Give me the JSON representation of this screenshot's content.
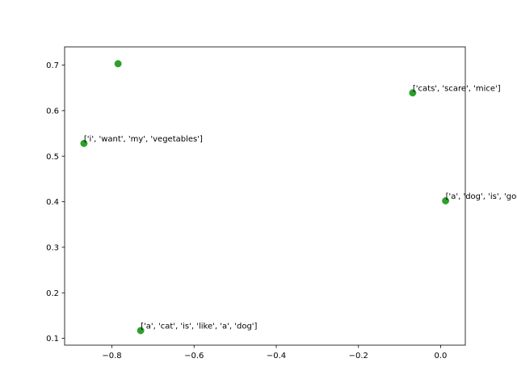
{
  "chart_data": {
    "type": "scatter",
    "title": "",
    "xlabel": "",
    "ylabel": "",
    "xlim": [
      -0.915,
      0.06
    ],
    "ylim": [
      0.085,
      0.74
    ],
    "xticks": [
      -0.8,
      -0.6,
      -0.4,
      -0.2,
      0.0
    ],
    "xtick_labels": [
      "−0.8",
      "−0.6",
      "−0.4",
      "−0.2",
      "0.0"
    ],
    "yticks": [
      0.1,
      0.2,
      0.3,
      0.4,
      0.5,
      0.6,
      0.7
    ],
    "ytick_labels": [
      "0.1",
      "0.2",
      "0.3",
      "0.4",
      "0.5",
      "0.6",
      "0.7"
    ],
    "grid": false,
    "legend": "none",
    "point_color": "#2ca02c",
    "points": [
      {
        "x": -0.785,
        "y": 0.703,
        "label": ""
      },
      {
        "x": -0.068,
        "y": 0.639,
        "label": "['cats', 'scare', 'mice']"
      },
      {
        "x": -0.868,
        "y": 0.528,
        "label": "['i', 'want', 'my', 'vegetables']"
      },
      {
        "x": 0.012,
        "y": 0.402,
        "label": "['a', 'dog', 'is', 'good']"
      },
      {
        "x": -0.73,
        "y": 0.117,
        "label": "['a', 'cat', 'is', 'like', 'a', 'dog']"
      }
    ]
  }
}
